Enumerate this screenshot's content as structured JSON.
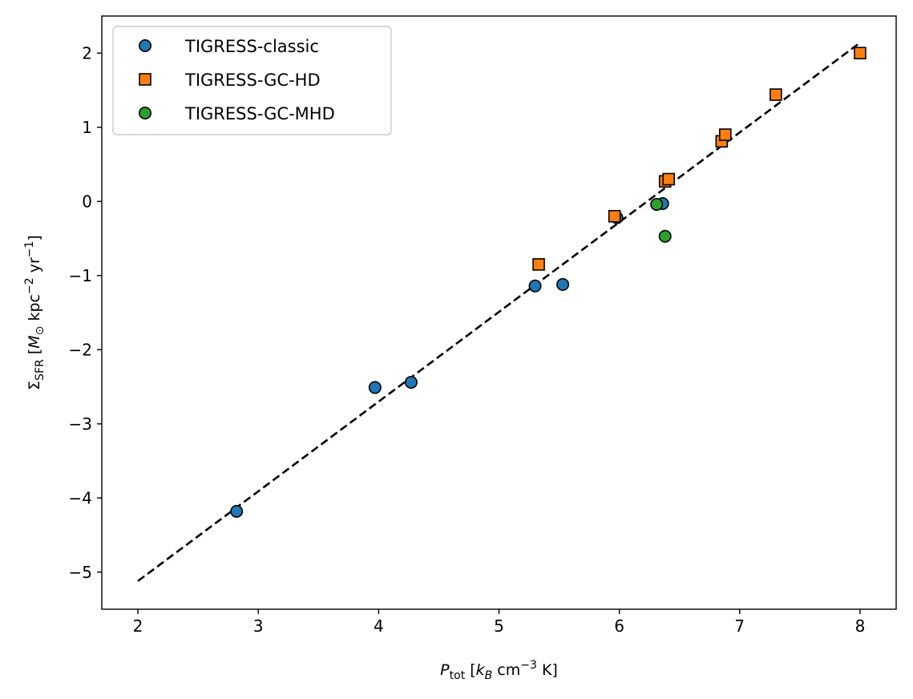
{
  "chart_data": {
    "type": "scatter",
    "xlabel": {
      "main": "P",
      "sub": "tot",
      "units": "[k_B cm^-3 K]"
    },
    "ylabel": {
      "main": "Σ",
      "sub": "SFR",
      "units": "[M_⊙ kpc^-2 yr^-1]"
    },
    "xlim": [
      1.7,
      8.3
    ],
    "ylim": [
      -5.5,
      2.5
    ],
    "xticks": [
      2,
      3,
      4,
      5,
      6,
      7,
      8
    ],
    "yticks": [
      -5,
      -4,
      -3,
      -2,
      -1,
      0,
      1,
      2
    ],
    "grid": false,
    "legend_position": "top-left",
    "series": [
      {
        "name": "TIGRESS-classic",
        "marker": "circle",
        "color": "#1f77b4",
        "points": [
          [
            2.82,
            -4.18
          ],
          [
            3.97,
            -2.51
          ],
          [
            4.27,
            -2.44
          ],
          [
            5.3,
            -1.14
          ],
          [
            5.53,
            -1.12
          ],
          [
            5.98,
            -0.22
          ],
          [
            6.36,
            -0.03
          ]
        ]
      },
      {
        "name": "TIGRESS-GC-HD",
        "marker": "square",
        "color": "#ff7f0e",
        "points": [
          [
            5.33,
            -0.85
          ],
          [
            5.96,
            -0.2
          ],
          [
            6.38,
            0.27
          ],
          [
            6.41,
            0.3
          ],
          [
            6.85,
            0.81
          ],
          [
            6.88,
            0.9
          ],
          [
            7.3,
            1.44
          ],
          [
            8.0,
            2.0
          ]
        ]
      },
      {
        "name": "TIGRESS-GC-MHD",
        "marker": "circle",
        "color": "#2ca02c",
        "points": [
          [
            6.31,
            -0.04
          ],
          [
            6.38,
            -0.47
          ]
        ]
      }
    ],
    "fit_line": {
      "x": [
        2,
        8
      ],
      "y": [
        -5.12,
        2.14
      ],
      "style": "dashed",
      "color": "#000000"
    }
  }
}
